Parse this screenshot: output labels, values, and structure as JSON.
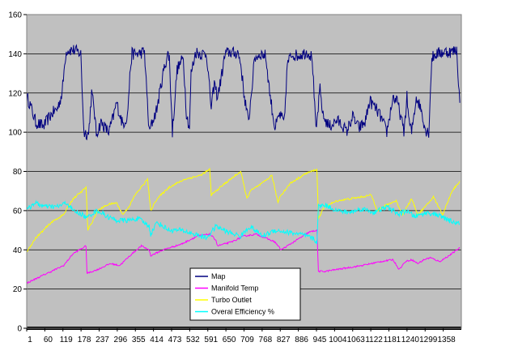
{
  "chart_data": {
    "type": "line",
    "title": "",
    "xlabel": "",
    "ylabel": "",
    "ylim": [
      0,
      160
    ],
    "yticks": [
      0,
      20,
      40,
      60,
      80,
      100,
      120,
      140,
      160
    ],
    "x_tick_labels": [
      "1",
      "60",
      "119",
      "178",
      "237",
      "296",
      "355",
      "414",
      "473",
      "532",
      "591",
      "650",
      "709",
      "768",
      "827",
      "886",
      "945",
      "1004",
      "1063",
      "1122",
      "1181",
      "1240",
      "1299",
      "1358"
    ],
    "x_range": [
      1,
      1400
    ],
    "grid": "horizontal",
    "plot_background": "#c0c0c0",
    "legend_position": "bottom-center",
    "series": [
      {
        "name": "Map",
        "color": "#000080",
        "x": [
          1,
          10,
          30,
          55,
          75,
          85,
          100,
          115,
          125,
          130,
          150,
          165,
          175,
          185,
          200,
          210,
          218,
          225,
          240,
          265,
          280,
          290,
          310,
          325,
          335,
          340,
          360,
          380,
          395,
          405,
          420,
          440,
          455,
          460,
          470,
          485,
          505,
          515,
          525,
          530,
          545,
          560,
          580,
          595,
          605,
          615,
          625,
          640,
          655,
          670,
          680,
          690,
          700,
          715,
          735,
          755,
          770,
          785,
          800,
          815,
          830,
          840,
          855,
          870,
          890,
          905,
          920,
          932,
          945,
          955,
          975,
          1000,
          1020,
          1030,
          1050,
          1070,
          1090,
          1105,
          1125,
          1140,
          1160,
          1180,
          1195,
          1205,
          1215,
          1225,
          1232,
          1240,
          1255,
          1270,
          1285,
          1295,
          1305,
          1320,
          1345,
          1370,
          1385,
          1395
        ],
        "values": [
          118,
          115,
          105,
          103,
          108,
          110,
          112,
          120,
          138,
          142,
          142,
          141,
          140,
          100,
          99,
          120,
          112,
          99,
          105,
          100,
          108,
          115,
          104,
          108,
          133,
          140,
          140,
          141,
          100,
          105,
          112,
          130,
          140,
          138,
          100,
          132,
          138,
          110,
          102,
          130,
          141,
          140,
          140,
          112,
          125,
          118,
          126,
          140,
          141,
          140,
          141,
          135,
          120,
          105,
          138,
          140,
          139,
          118,
          102,
          109,
          105,
          135,
          140,
          139,
          140,
          141,
          138,
          100,
          122,
          108,
          103,
          106,
          103,
          100,
          108,
          102,
          105,
          116,
          112,
          108,
          100,
          118,
          115,
          108,
          100,
          118,
          105,
          100,
          118,
          112,
          101,
          100,
          138,
          140,
          141,
          141,
          142,
          115
        ]
      },
      {
        "name": "Manifold Temp",
        "color": "#ff00ff",
        "x": [
          1,
          40,
          80,
          120,
          150,
          192,
          195,
          230,
          270,
          300,
          340,
          370,
          395,
          400,
          440,
          500,
          550,
          590,
          610,
          615,
          660,
          700,
          740,
          770,
          800,
          820,
          840,
          880,
          910,
          935,
          940,
          960,
          1000,
          1040,
          1080,
          1110,
          1140,
          1180,
          1200,
          1220,
          1240,
          1260,
          1280,
          1300,
          1330,
          1360,
          1395
        ],
        "values": [
          23,
          26,
          29,
          32,
          38,
          42,
          28,
          30,
          33,
          32,
          38,
          42,
          40,
          37,
          40,
          43,
          47,
          48,
          45,
          42,
          44,
          47,
          48,
          46,
          44,
          40,
          42,
          46,
          49,
          50,
          29,
          29,
          30,
          31,
          32,
          33,
          34,
          35,
          30,
          34,
          35,
          33,
          35,
          36,
          34,
          37,
          41
        ]
      },
      {
        "name": "Turbo Outlet",
        "color": "#ffff00",
        "x": [
          1,
          30,
          80,
          120,
          150,
          180,
          192,
          198,
          230,
          260,
          290,
          310,
          330,
          350,
          390,
          400,
          420,
          460,
          510,
          560,
          590,
          595,
          610,
          640,
          690,
          710,
          720,
          760,
          790,
          810,
          815,
          850,
          900,
          935,
          940,
          960,
          1000,
          1040,
          1080,
          1110,
          1130,
          1160,
          1190,
          1210,
          1240,
          1260,
          1290,
          1310,
          1340,
          1370,
          1395
        ],
        "values": [
          39,
          46,
          54,
          58,
          66,
          70,
          72,
          50,
          60,
          63,
          64,
          58,
          62,
          68,
          76,
          60,
          66,
          72,
          76,
          78,
          81,
          68,
          70,
          74,
          80,
          66,
          70,
          74,
          78,
          64,
          67,
          74,
          79,
          81,
          56,
          62,
          65,
          66,
          67,
          68,
          60,
          63,
          65,
          58,
          66,
          58,
          63,
          67,
          58,
          70,
          75
        ]
      },
      {
        "name": "Overal Efficiency %",
        "color": "#00ffff",
        "x": [
          1,
          25,
          60,
          100,
          130,
          150,
          180,
          195,
          205,
          230,
          260,
          290,
          330,
          360,
          395,
          400,
          420,
          460,
          500,
          540,
          580,
          610,
          650,
          690,
          720,
          760,
          800,
          840,
          880,
          920,
          935,
          940,
          960,
          1000,
          1040,
          1080,
          1120,
          1160,
          1200,
          1220,
          1250,
          1290,
          1320,
          1360,
          1395
        ],
        "values": [
          60,
          64,
          62,
          62,
          64,
          60,
          58,
          56,
          58,
          60,
          57,
          55,
          55,
          56,
          52,
          48,
          54,
          50,
          50,
          48,
          46,
          52,
          49,
          47,
          52,
          47,
          50,
          49,
          48,
          46,
          44,
          62,
          63,
          60,
          59,
          61,
          59,
          62,
          58,
          60,
          57,
          59,
          58,
          55,
          53
        ]
      }
    ]
  }
}
